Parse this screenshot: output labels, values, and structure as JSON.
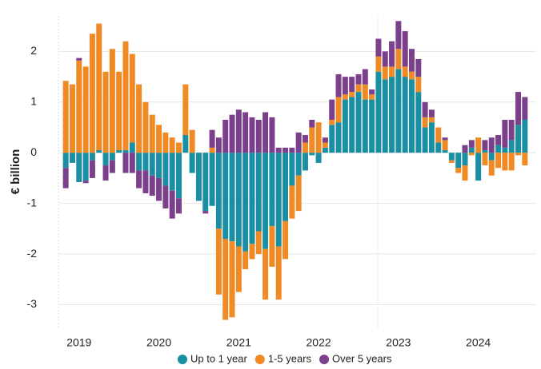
{
  "chart_data": {
    "type": "bar",
    "stacked": true,
    "y_label": "€ billion",
    "categories": [
      null,
      null,
      "2019",
      null,
      null,
      null,
      null,
      null,
      null,
      null,
      null,
      null,
      null,
      null,
      "2020",
      null,
      null,
      null,
      null,
      null,
      null,
      null,
      null,
      null,
      null,
      null,
      "2021",
      null,
      null,
      null,
      null,
      null,
      null,
      null,
      null,
      null,
      null,
      null,
      "2022",
      null,
      null,
      null,
      null,
      null,
      null,
      null,
      null,
      null,
      null,
      null,
      "2023",
      null,
      null,
      null,
      null,
      null,
      null,
      null,
      null,
      null,
      null,
      null,
      "2024",
      null,
      null,
      null,
      null,
      null,
      null,
      null
    ],
    "series": [
      {
        "name": "Up to 1 year",
        "color": "#1a8fa3",
        "values": [
          -0.3,
          -0.2,
          -0.58,
          -0.55,
          -0.15,
          0.05,
          -0.25,
          -0.15,
          0.05,
          0.05,
          0.2,
          -0.35,
          -0.35,
          -0.45,
          -0.5,
          -0.65,
          -0.75,
          -0.9,
          0.35,
          -0.4,
          -0.95,
          -1.15,
          -1.05,
          -1.5,
          -1.7,
          -1.75,
          -1.85,
          -1.95,
          -1.8,
          -1.55,
          -1.9,
          -1.45,
          -1.85,
          -1.35,
          -0.65,
          -0.45,
          -0.35,
          -0.05,
          -0.2,
          0.1,
          0.55,
          0.6,
          1.05,
          1.1,
          1.2,
          1.05,
          1.05,
          1.6,
          1.45,
          1.5,
          1.65,
          1.5,
          1.45,
          1.2,
          0.5,
          0.6,
          0.2,
          0.05,
          -0.15,
          -0.3,
          -0.25,
          0.1,
          -0.55,
          0.05,
          -0.15,
          0.15,
          0.1,
          0.25,
          0.55,
          0.65
        ]
      },
      {
        "name": "1-5 years",
        "color": "#f08a24",
        "values": [
          1.42,
          1.35,
          1.82,
          1.7,
          2.35,
          2.5,
          1.6,
          2.05,
          1.55,
          2.15,
          1.75,
          1.35,
          1.0,
          0.75,
          0.55,
          0.4,
          0.3,
          0.2,
          1.0,
          0.45,
          0,
          0,
          0.1,
          -1.3,
          -1.6,
          -1.5,
          -0.9,
          -0.35,
          -0.3,
          -0.45,
          -1.0,
          -0.8,
          -1.05,
          -0.75,
          -0.65,
          -0.7,
          0.2,
          0.5,
          0.6,
          0.1,
          0.1,
          0.5,
          0.1,
          0.1,
          0.15,
          0.3,
          0.1,
          0.3,
          0.25,
          0.2,
          0.4,
          0.2,
          0.15,
          0.3,
          0.2,
          0.1,
          0.3,
          0.2,
          -0.05,
          -0.1,
          -0.3,
          -0.05,
          0.3,
          -0.25,
          -0.3,
          -0.3,
          -0.35,
          -0.35,
          -0.05,
          -0.25
        ]
      },
      {
        "name": "Over 5 years",
        "color": "#7b3f8c",
        "values": [
          -0.4,
          0,
          0.05,
          -0.05,
          -0.35,
          0,
          -0.3,
          -0.25,
          0,
          -0.4,
          -0.4,
          -0.35,
          -0.45,
          -0.4,
          -0.45,
          -0.45,
          -0.55,
          -0.3,
          0,
          0,
          0,
          -0.05,
          0.35,
          0.3,
          0.65,
          0.75,
          0.85,
          0.8,
          0.7,
          0.65,
          0.8,
          0.7,
          0.1,
          0.1,
          0.1,
          0.4,
          0.15,
          0.15,
          0,
          0.1,
          0.4,
          0.45,
          0.35,
          0.3,
          0.2,
          0.3,
          0.1,
          0.35,
          0.3,
          0.5,
          0.55,
          0.7,
          0.45,
          0.35,
          0.3,
          0.15,
          0,
          0.05,
          0,
          0,
          0.15,
          0.15,
          0,
          0.2,
          0.3,
          0.2,
          0.55,
          0.4,
          0.65,
          0.45
        ]
      }
    ],
    "ylim": [
      -3.45,
      2.7
    ],
    "yticks": [
      -3,
      -2,
      -1,
      0,
      1,
      2
    ],
    "grid": true,
    "legend": "bottom"
  }
}
